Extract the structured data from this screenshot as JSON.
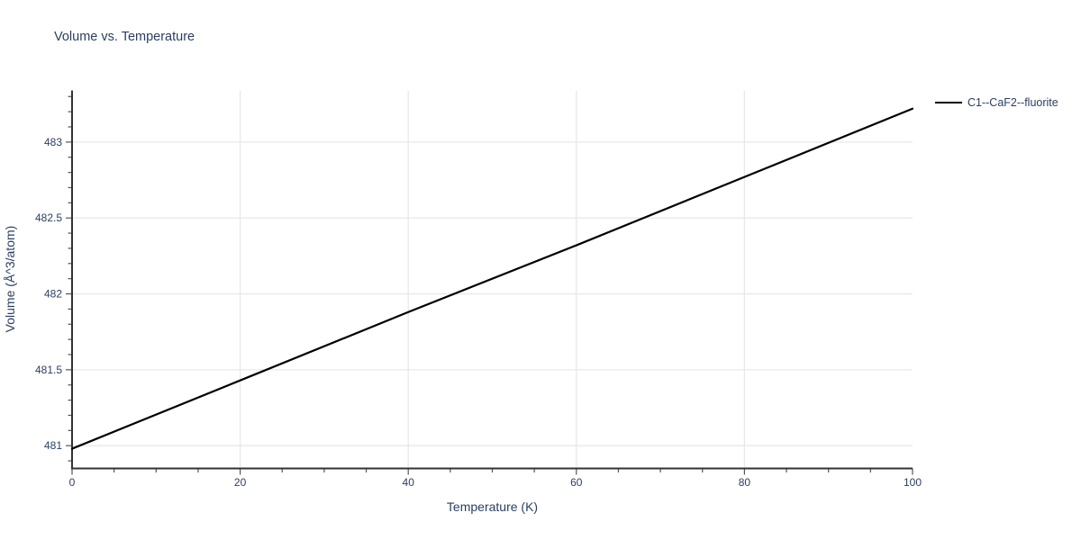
{
  "colors": {
    "text": "#2a3f5f",
    "grid": "#e8e8e8",
    "axis": "#333333",
    "tick": "#555555",
    "background": "#ffffff",
    "line": "#000000"
  },
  "chart_data": {
    "type": "line",
    "title": "Volume vs. Temperature",
    "xlabel": "Temperature (K)",
    "ylabel": "Volume (Å^3/atom)",
    "xlim": [
      0,
      100
    ],
    "ylim": [
      480.85,
      483.34
    ],
    "xticks": [
      0,
      20,
      40,
      60,
      80,
      100
    ],
    "yticks": [
      481,
      481.5,
      482,
      482.5,
      483
    ],
    "x_minor_step": 5,
    "y_minor_step": 0.1,
    "x_gridlines": [
      20,
      40,
      60,
      80
    ],
    "y_gridlines": [
      481,
      481.5,
      482,
      482.5,
      483
    ],
    "grid": true,
    "legend_position": "top-right-outside",
    "series": [
      {
        "name": "C1--CaF2--fluorite",
        "color": "#000000",
        "width": 2.2,
        "x": [
          0,
          20,
          40,
          60,
          80,
          100
        ],
        "y": [
          480.98,
          481.43,
          481.88,
          482.32,
          482.77,
          483.22
        ]
      }
    ]
  }
}
